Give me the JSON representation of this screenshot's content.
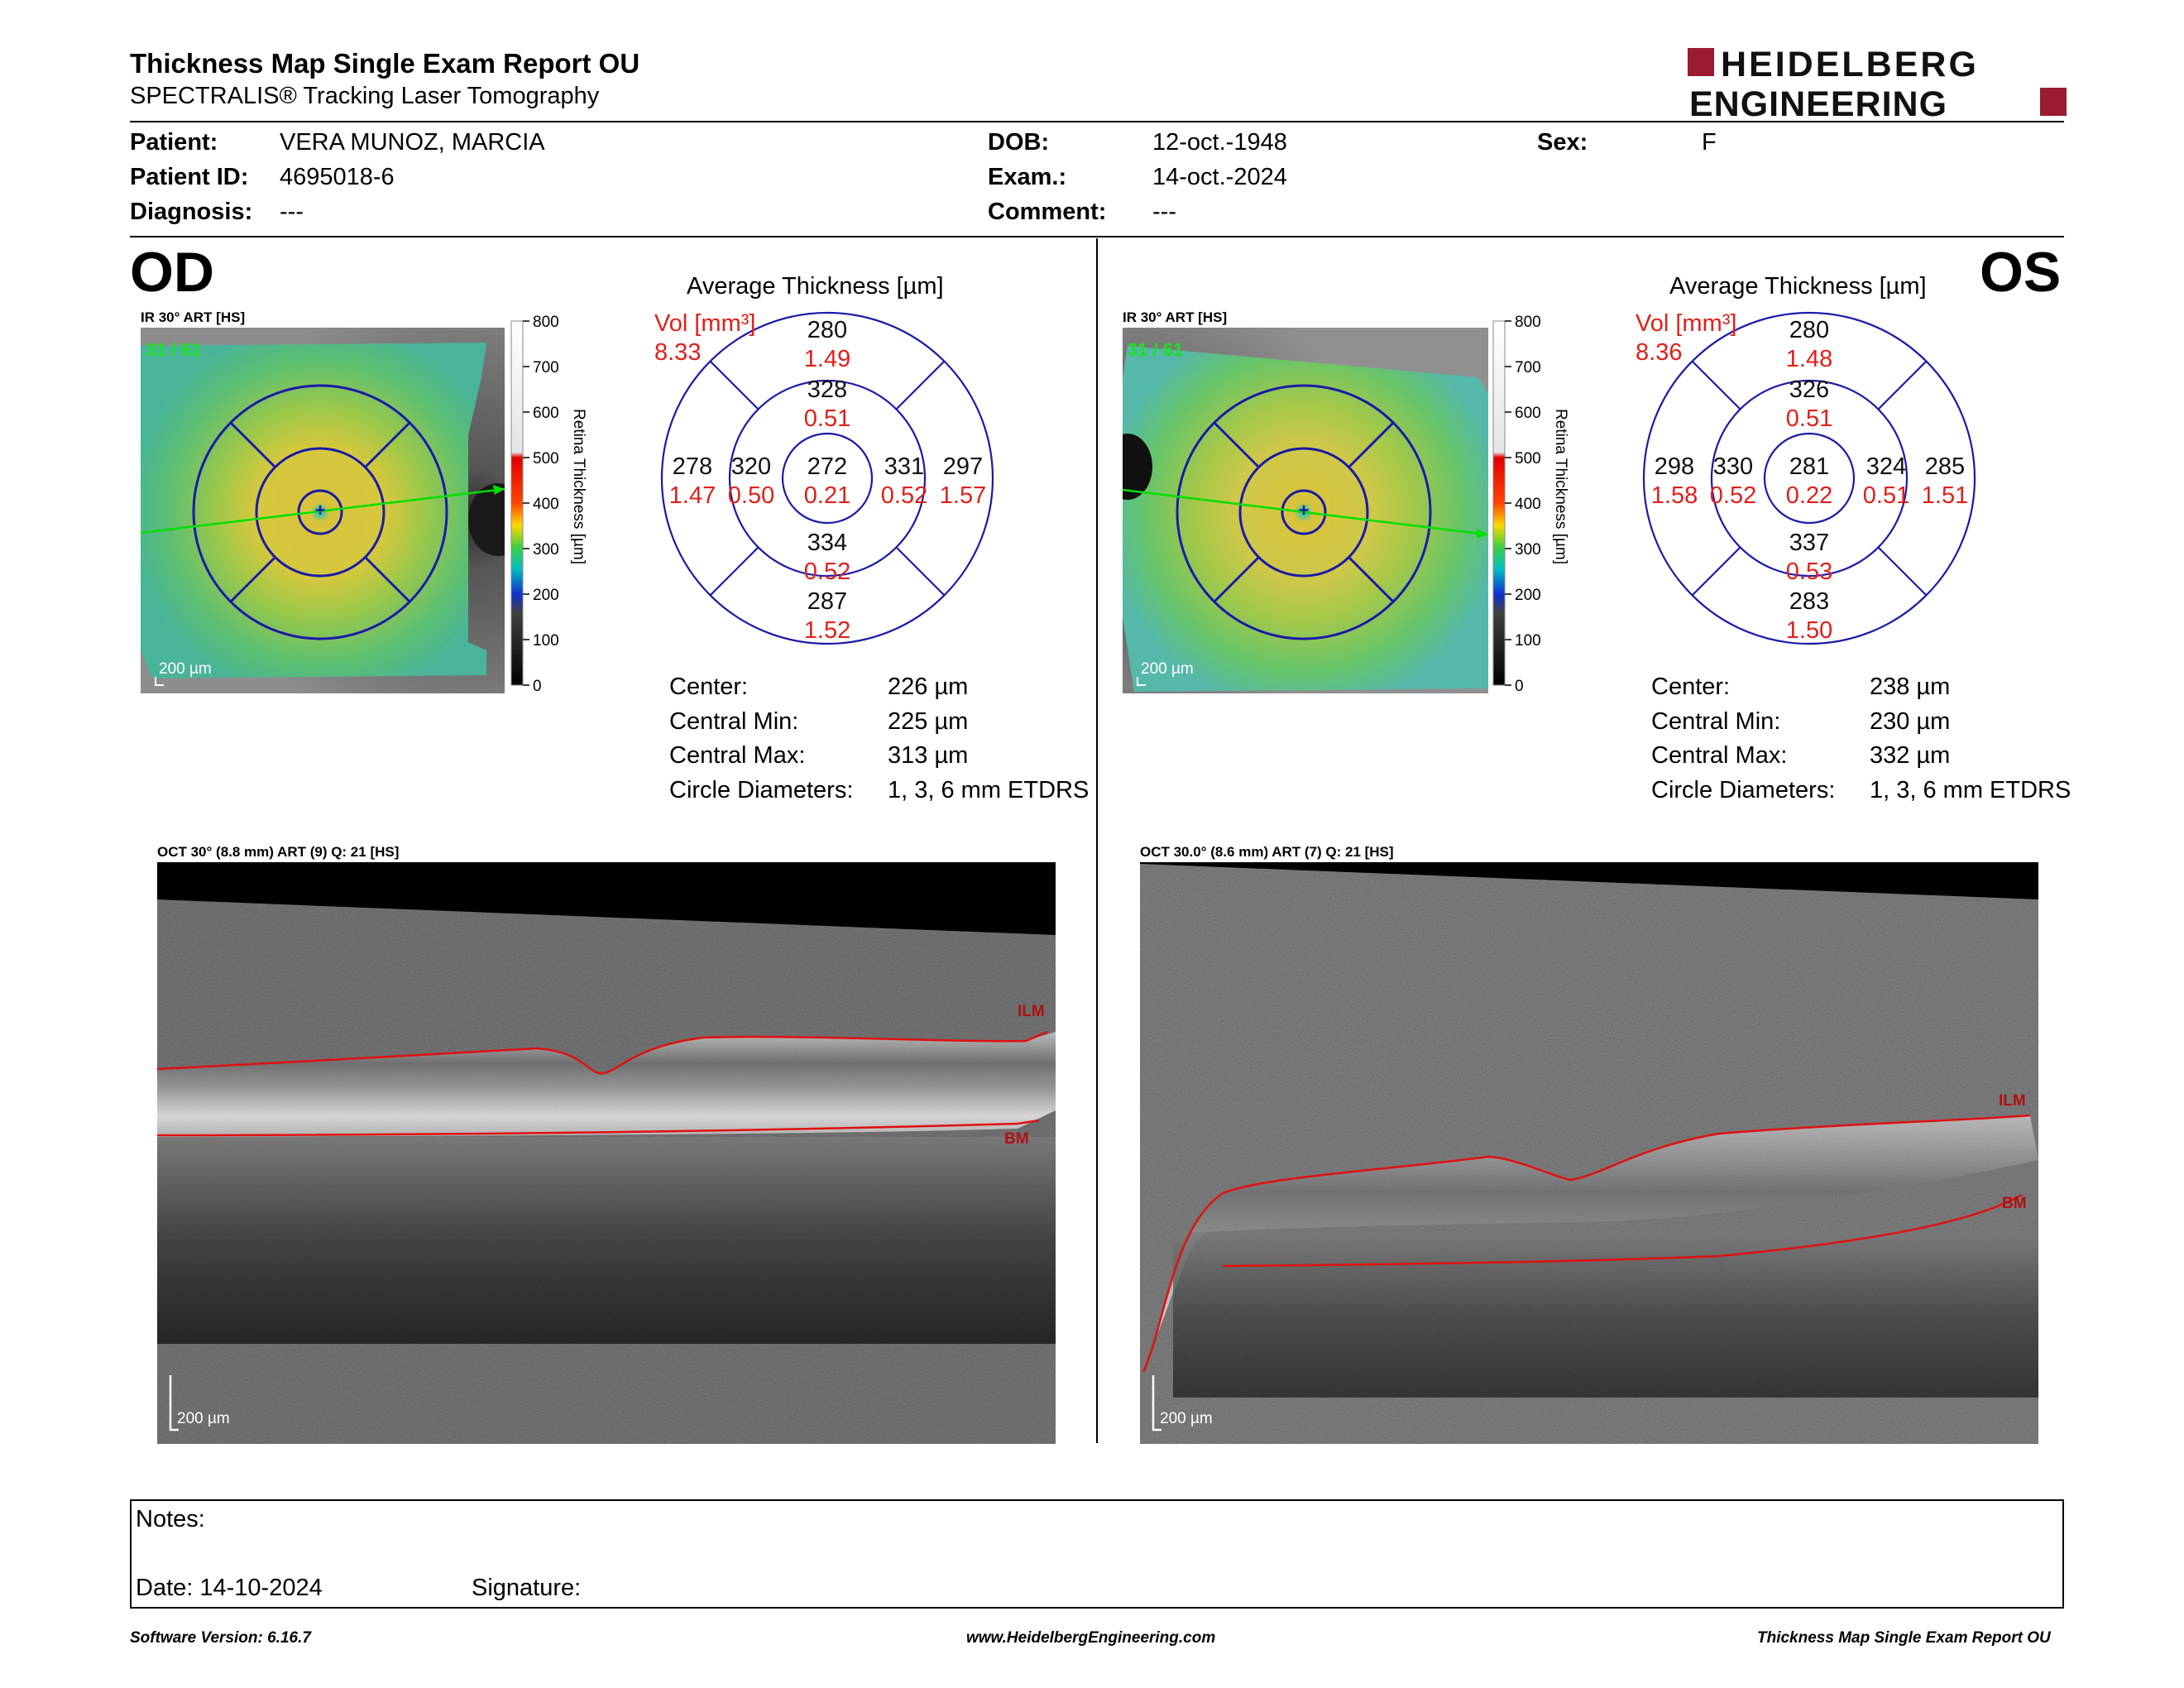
{
  "header": {
    "title": "Thickness Map Single Exam Report OU",
    "subtitle": "SPECTRALIS® Tracking Laser Tomography",
    "logo_line1": "HEIDELBERG",
    "logo_line2": "ENGINEERING"
  },
  "patient": {
    "patient_label": "Patient:",
    "patient_value": "VERA MUNOZ, MARCIA",
    "id_label": "Patient ID:",
    "id_value": "4695018-6",
    "diagnosis_label": "Diagnosis:",
    "diagnosis_value": "---",
    "dob_label": "DOB:",
    "dob_value": "12-oct.-1948",
    "exam_label": "Exam.:",
    "exam_value": "14-oct.-2024",
    "comment_label": "Comment:",
    "comment_value": "---",
    "sex_label": "Sex:",
    "sex_value": "F"
  },
  "od": {
    "eye": "OD",
    "ir_label": "IR 30° ART [HS]",
    "frame": "31 / 61",
    "scale_bar": "200 µm",
    "colorbar_ticks": [
      "800",
      "700",
      "600",
      "500",
      "400",
      "300",
      "200",
      "100",
      "0"
    ],
    "colorbar_title": "Retina  Thickness [µm]",
    "avg_title": "Average Thickness [µm]",
    "vol_label": "Vol [mm³]",
    "vol_total": "8.33",
    "sectors": {
      "top_outer": [
        "280",
        "1.49"
      ],
      "top_inner": [
        "328",
        "0.51"
      ],
      "left_outer": [
        "278",
        "1.47"
      ],
      "left_inner": [
        "320",
        "0.50"
      ],
      "center": [
        "272",
        "0.21"
      ],
      "right_inner": [
        "331",
        "0.52"
      ],
      "right_outer": [
        "297",
        "1.57"
      ],
      "bottom_inner": [
        "334",
        "0.52"
      ],
      "bottom_outer": [
        "287",
        "1.52"
      ]
    },
    "stats": [
      {
        "label": "Center:",
        "value": "226 µm"
      },
      {
        "label": "Central Min:",
        "value": "225 µm"
      },
      {
        "label": "Central Max:",
        "value": "313 µm"
      },
      {
        "label": "Circle Diameters:",
        "value": "1, 3, 6 mm ETDRS"
      }
    ],
    "oct_label": "OCT 30° (8.8 mm) ART (9) Q: 21 [HS]",
    "oct_ilm": "ILM",
    "oct_bm": "BM",
    "oct_scale": "200 µm"
  },
  "os": {
    "eye": "OS",
    "ir_label": "IR 30° ART [HS]",
    "frame": "31 / 61",
    "scale_bar": "200 µm",
    "colorbar_ticks": [
      "800",
      "700",
      "600",
      "500",
      "400",
      "300",
      "200",
      "100",
      "0"
    ],
    "colorbar_title": "Retina  Thickness [µm]",
    "avg_title": "Average Thickness [µm]",
    "vol_label": "Vol [mm³]",
    "vol_total": "8.36",
    "sectors": {
      "top_outer": [
        "280",
        "1.48"
      ],
      "top_inner": [
        "326",
        "0.51"
      ],
      "left_outer": [
        "298",
        "1.58"
      ],
      "left_inner": [
        "330",
        "0.52"
      ],
      "center": [
        "281",
        "0.22"
      ],
      "right_inner": [
        "324",
        "0.51"
      ],
      "right_outer": [
        "285",
        "1.51"
      ],
      "bottom_inner": [
        "337",
        "0.53"
      ],
      "bottom_outer": [
        "283",
        "1.50"
      ]
    },
    "stats": [
      {
        "label": "Center:",
        "value": "238 µm"
      },
      {
        "label": "Central Min:",
        "value": "230 µm"
      },
      {
        "label": "Central Max:",
        "value": "332 µm"
      },
      {
        "label": "Circle Diameters:",
        "value": "1, 3, 6 mm ETDRS"
      }
    ],
    "oct_label": "OCT 30.0° (8.6 mm) ART (7) Q: 21 [HS]",
    "oct_ilm": "ILM",
    "oct_bm": "BM",
    "oct_scale": "200 µm"
  },
  "notes": {
    "notes_label": "Notes:",
    "date_label": "Date: 14-10-2024",
    "signature_label": "Signature:"
  },
  "footer": {
    "software": "Software Version: 6.16.7",
    "website": "www.HeidelbergEngineering.com",
    "report": "Thickness Map Single Exam Report OU"
  },
  "colors": {
    "ring_blue": "#1a1aa8",
    "value_red": "#e0201a",
    "logo_red": "#9b1b30",
    "ilm_red": "#e01010"
  }
}
